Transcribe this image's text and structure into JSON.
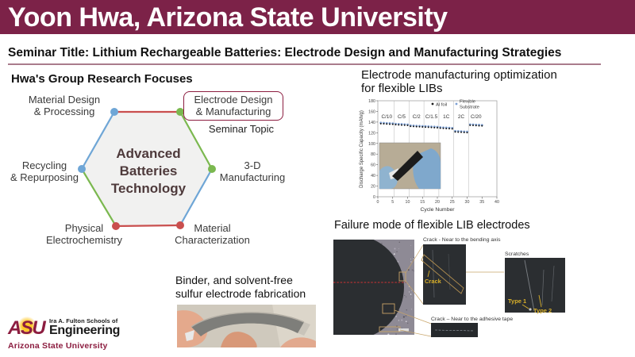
{
  "header": {
    "title": "Yoon Hwa, Arizona State University"
  },
  "seminar": {
    "title": "Seminar Title: Lithium Rechargeable Batteries: Electrode Design and Manufacturing Strategies"
  },
  "research": {
    "heading": "Hwa's Group Research Focuses",
    "center": [
      "Advanced",
      "Batteries",
      "Technology"
    ],
    "nodes": {
      "top_left": [
        "Material Design",
        "& Processing"
      ],
      "top_right": [
        "Electrode Design",
        "& Manufacturing"
      ],
      "left": [
        "Recycling",
        "& Repurposing"
      ],
      "right": [
        "3-D",
        "Manufacturing"
      ],
      "bottom_left": [
        "Physical",
        "Electrochemistry"
      ],
      "bottom_right": [
        "Material",
        "Characterization"
      ]
    },
    "seminar_topic_label": "Seminar Topic"
  },
  "chart_section": {
    "title_line1": "Electrode manufacturing optimization",
    "title_line2": "for flexible LIBs"
  },
  "chart_data": {
    "type": "scatter",
    "xlabel": "Cycle Number",
    "ylabel": "Discharge Specific Capacity (mAh/g)",
    "xlim": [
      0,
      40
    ],
    "ylim": [
      0,
      180
    ],
    "xticks": [
      0,
      5,
      10,
      15,
      20,
      25,
      30,
      35,
      40
    ],
    "yticks": [
      0,
      20,
      40,
      60,
      80,
      100,
      120,
      140,
      160,
      180
    ],
    "legend": [
      "Al foil",
      "Flexible",
      "Substrate"
    ],
    "grid": "vertical segment separators only",
    "legend_position": "top-right inside",
    "series": [
      {
        "name": "Al foil",
        "color": "#1a1a1a",
        "segment_values": [
          136.5,
          134.5,
          131.5,
          130,
          128,
          121,
          133.5
        ]
      },
      {
        "name": "Flexible Substrate",
        "color": "#7B9FD4",
        "segment_values": [
          138,
          136,
          133,
          131.5,
          129.5,
          122.5,
          135
        ]
      }
    ],
    "rate_segments": [
      {
        "label": "C/10",
        "cycle_start": 1,
        "cycle_end": 5
      },
      {
        "label": "C/5",
        "cycle_start": 6,
        "cycle_end": 10
      },
      {
        "label": "C/2",
        "cycle_start": 11,
        "cycle_end": 15
      },
      {
        "label": "C/1.5",
        "cycle_start": 16,
        "cycle_end": 20
      },
      {
        "label": "1C",
        "cycle_start": 21,
        "cycle_end": 25
      },
      {
        "label": "2C",
        "cycle_start": 26,
        "cycle_end": 30
      },
      {
        "label": "C/20",
        "cycle_start": 31,
        "cycle_end": 35
      }
    ],
    "separator_cycles": [
      5.5,
      10.5,
      15.5,
      20.5,
      25.5,
      30.5
    ]
  },
  "failure": {
    "title": "Failure mode of flexible LIB electrodes",
    "caption_bending": "Crack - Near to the bending axis",
    "caption_scratches": "Scratches",
    "caption_tape": "Crack – Near to the adhesive tape",
    "annotation_crack": "Crack",
    "annotation_type1": "Type 1",
    "annotation_type2": "Type 2"
  },
  "binder": {
    "line1": "Binder, and solvent-free",
    "line2": "sulfur electrode fabrication"
  },
  "logo": {
    "asu": "ASU",
    "schools": "Ira A. Fulton Schools of",
    "engineering": "Engineering",
    "university": "Arizona State University"
  },
  "colors": {
    "accent_maroon": "#7C2248",
    "underline_mauve": "#A97C8C",
    "asu_maroon": "#8C1D40",
    "asu_gold": "#FFC627",
    "hex_red": "#C94F4E",
    "hex_blue": "#6FA6D6",
    "hex_green": "#7BB84F",
    "hex_fill": "#F1F1F0",
    "center_text": "#4E3A3B",
    "series_al": "#1a1a1a",
    "series_flexible": "#7B9FD4",
    "annotation_yellow": "#D9B02A",
    "connector_tan": "#C8A468",
    "failure_red_line": "#CC3333"
  }
}
